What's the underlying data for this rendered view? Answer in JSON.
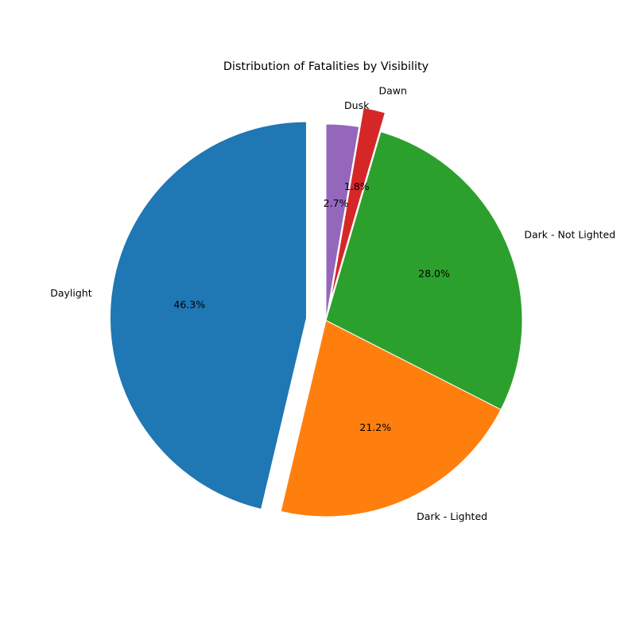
{
  "chart_data": {
    "type": "pie",
    "title": "Distribution of Fatalities by Visibility",
    "start_angle_deg": 90,
    "direction": "counterclockwise",
    "slices": [
      {
        "label": "Daylight",
        "percent": 46.3,
        "percent_label": "46.3%",
        "color": "#1f77b4",
        "exploded": true
      },
      {
        "label": "Dark - Lighted",
        "percent": 21.2,
        "percent_label": "21.2%",
        "color": "#ff7f0e",
        "exploded": false
      },
      {
        "label": "Dark - Not Lighted",
        "percent": 28.0,
        "percent_label": "28.0%",
        "color": "#2ca02c",
        "exploded": false
      },
      {
        "label": "Dawn",
        "percent": 1.8,
        "percent_label": "1.8%",
        "color": "#d62728",
        "exploded": true
      },
      {
        "label": "Dusk",
        "percent": 2.7,
        "percent_label": "2.7%",
        "color": "#9467bd",
        "exploded": false
      }
    ]
  }
}
